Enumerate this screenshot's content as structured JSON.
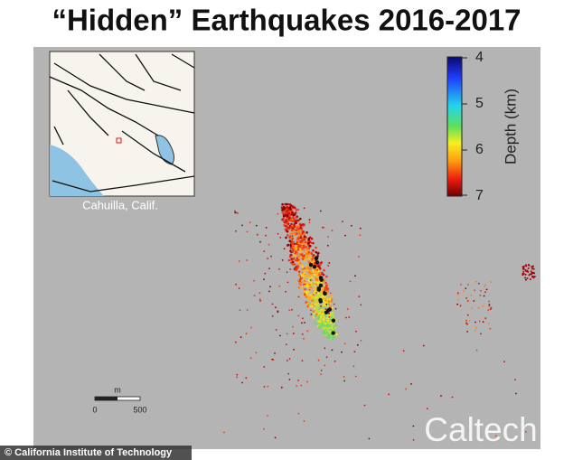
{
  "title": "“Hidden” Earthquakes 2016-2017",
  "inset": {
    "label": "Cahuilla, Calif."
  },
  "colorbar": {
    "label": "Depth (km)",
    "ticks": [
      "4",
      "5",
      "6",
      "7"
    ]
  },
  "scale_bar": {
    "unit": "m",
    "ticks": [
      "0",
      "500"
    ]
  },
  "watermark": "Caltech",
  "credit": "© California Institute of Technology"
}
